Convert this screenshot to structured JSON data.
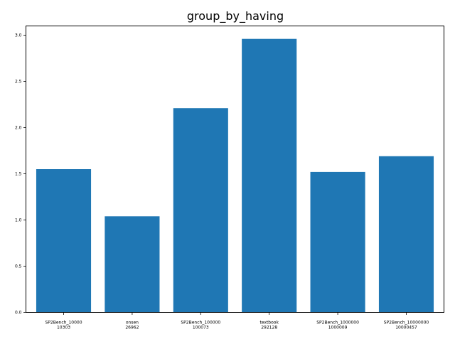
{
  "chart_data": {
    "type": "bar",
    "title": "group_by_having",
    "xlabel": "",
    "ylabel": "",
    "categories": [
      [
        "SP2Bench_10000",
        "10303"
      ],
      [
        "onsen",
        "26962"
      ],
      [
        "SP2Bench_100000",
        "100073"
      ],
      [
        "textbook",
        "292128"
      ],
      [
        "SP2Bench_1000000",
        "1000009"
      ],
      [
        "SP2Bench_10000000",
        "10000457"
      ]
    ],
    "values": [
      1.55,
      1.04,
      2.21,
      2.96,
      1.52,
      1.69
    ],
    "ylim": [
      0,
      3.1
    ],
    "yticks": [
      "0.0",
      "0.5",
      "1.0",
      "1.5",
      "2.0",
      "2.5",
      "3.0"
    ],
    "bar_color": "#1f77b4",
    "grid": false,
    "legend": "none"
  }
}
